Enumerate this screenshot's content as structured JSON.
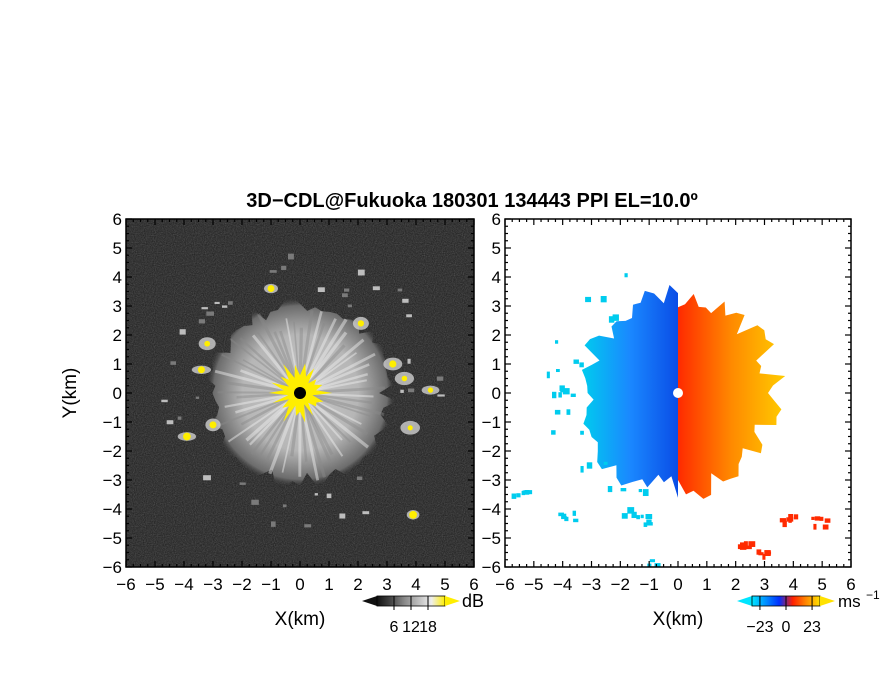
{
  "title": "3D−CDL@Fukuoka 180301 134443 PPI EL=10.0º",
  "chart_data": [
    {
      "type": "heatmap",
      "panel": "reflectivity",
      "xlabel": "X(km)",
      "ylabel": "Y(km)",
      "xlim": [
        -6,
        6
      ],
      "ylim": [
        -6,
        6
      ],
      "xticks": [
        "−6",
        "−5",
        "−4",
        "−3",
        "−2",
        "−1",
        "0",
        "1",
        "2",
        "3",
        "4",
        "5",
        "6"
      ],
      "yticks": [
        "6",
        "5",
        "4",
        "3",
        "2",
        "1",
        "0",
        "−1",
        "−2",
        "−3",
        "−4",
        "−5",
        "−6"
      ],
      "background_color": "#1a1a1a",
      "echo_color": "#cfcfcf",
      "high_value_color": "#ffee00",
      "echo_radius_km": 3.1,
      "high_value_radius_km": 0.9,
      "colorbar": {
        "unit": "dB",
        "ticks": [
          "6",
          "12",
          "18"
        ],
        "range": [
          0,
          24
        ],
        "colors": [
          "#111111",
          "#444444",
          "#888888",
          "#bbbbbb",
          "#eeeeee",
          "#ffee00"
        ]
      },
      "features": [
        {
          "name": "yellow echo",
          "x": -1.0,
          "y": 3.6
        },
        {
          "name": "yellow echo",
          "x": -3.2,
          "y": 1.7
        },
        {
          "name": "yellow echo",
          "x": -3.4,
          "y": 0.8
        },
        {
          "name": "yellow echo",
          "x": -3.0,
          "y": -1.1
        },
        {
          "name": "yellow echo",
          "x": -3.9,
          "y": -1.5
        },
        {
          "name": "yellow echo",
          "x": 2.1,
          "y": 2.4
        },
        {
          "name": "yellow echo",
          "x": 3.2,
          "y": 1.0
        },
        {
          "name": "yellow echo",
          "x": 3.6,
          "y": 0.5
        },
        {
          "name": "yellow echo",
          "x": 4.5,
          "y": 0.1
        },
        {
          "name": "yellow echo",
          "x": 3.8,
          "y": -1.2
        },
        {
          "name": "yellow echo",
          "x": 3.9,
          "y": -4.2
        }
      ]
    },
    {
      "type": "heatmap",
      "panel": "doppler velocity",
      "xlabel": "X(km)",
      "xlim": [
        -6,
        6
      ],
      "ylim": [
        -6,
        6
      ],
      "xticks": [
        "−6",
        "−5",
        "−4",
        "−3",
        "−2",
        "−1",
        "0",
        "1",
        "2",
        "3",
        "4",
        "5",
        "6"
      ],
      "yticks": [
        "6",
        "5",
        "4",
        "3",
        "2",
        "1",
        "0",
        "−1",
        "−2",
        "−3",
        "−4",
        "−5",
        "−6"
      ],
      "approaching_color": "#0a4de6",
      "approaching_far_color": "#00ccee",
      "receding_color": "#ff2a00",
      "receding_far_color": "#ffcc00",
      "echo_radius_km": 3.5,
      "colorbar": {
        "unit": "ms",
        "unit_exponent": "−1",
        "ticks": [
          "−23",
          "0",
          "23"
        ],
        "range": [
          -30,
          30
        ],
        "colors": [
          "#00e5ff",
          "#0090ff",
          "#0030ff",
          "#ff2000",
          "#ff8a00",
          "#ffe100"
        ]
      },
      "features": [
        {
          "name": "receding echo",
          "x": 3.8,
          "y": -4.3
        },
        {
          "name": "receding echo",
          "x": 4.9,
          "y": -4.4
        },
        {
          "name": "receding echo",
          "x": 2.2,
          "y": -5.2
        },
        {
          "name": "receding echo",
          "x": 2.9,
          "y": -5.4
        },
        {
          "name": "approaching echo",
          "x": -5.5,
          "y": -3.5
        },
        {
          "name": "approaching echo",
          "x": -3.9,
          "y": -4.2
        },
        {
          "name": "approaching echo",
          "x": -1.2,
          "y": -4.3
        },
        {
          "name": "approaching echo",
          "x": -1.0,
          "y": -5.9
        }
      ]
    }
  ]
}
